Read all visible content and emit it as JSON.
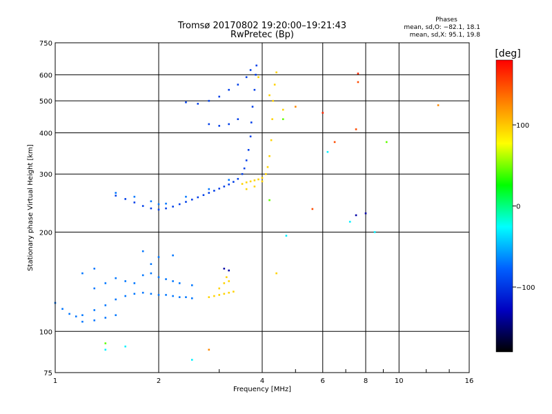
{
  "title": "Tromsø 20170802 19:20:00–19:21:43",
  "subtitle": "RwPretec (Bp)",
  "phase_box": {
    "heading": "Phases",
    "line_o": "mean, sd,O: −82.1, 18.1",
    "line_x": "mean, sd,X:  95.1, 19.8"
  },
  "colorbar": {
    "label": "[deg]",
    "min": -180,
    "max": 180,
    "tick_labels": [
      "100",
      "0",
      "−100"
    ],
    "tick_values": [
      100,
      0,
      -100
    ],
    "colors": [
      "#ff0000",
      "#ff8000",
      "#ffff00",
      "#00ff00",
      "#00ffff",
      "#0060ff",
      "#0000c0",
      "#000000"
    ]
  },
  "chart_data": {
    "type": "scatter",
    "title": "Tromsø 20170802 19:20:00–19:21:43",
    "subtitle": "RwPretec (Bp)",
    "xlabel": "Frequency [MHz]",
    "ylabel": "Stationary phase Virtual Height [km]",
    "xscale": "log2",
    "yscale": "log",
    "xlim": [
      1,
      16
    ],
    "ylim": [
      75,
      750
    ],
    "x_ticks": [
      1,
      2,
      4,
      6,
      8,
      10,
      16
    ],
    "x_tick_labels": [
      "1",
      "2",
      "4",
      "6",
      "8",
      "10",
      "16"
    ],
    "y_ticks": [
      75,
      100,
      200,
      300,
      400,
      500,
      600,
      750
    ],
    "y_tick_labels": [
      "75",
      "100",
      "200",
      "300",
      "400",
      "500",
      "600",
      "750"
    ],
    "grid": true,
    "color_scale": "phase [deg]",
    "series": [
      {
        "phase_deg": -95,
        "points": [
          [
            1.5,
            258
          ],
          [
            1.6,
            252
          ],
          [
            1.7,
            246
          ],
          [
            1.8,
            240
          ],
          [
            1.9,
            236
          ],
          [
            2.0,
            234
          ],
          [
            2.1,
            236
          ],
          [
            2.2,
            239
          ],
          [
            2.3,
            243
          ],
          [
            2.4,
            247
          ],
          [
            2.5,
            251
          ],
          [
            2.6,
            255
          ],
          [
            2.7,
            259
          ],
          [
            2.8,
            263
          ],
          [
            2.9,
            267
          ],
          [
            3.0,
            271
          ],
          [
            3.1,
            275
          ],
          [
            3.2,
            279
          ],
          [
            3.3,
            284
          ],
          [
            3.4,
            290
          ],
          [
            3.5,
            300
          ],
          [
            3.55,
            312
          ],
          [
            3.6,
            330
          ],
          [
            3.65,
            355
          ],
          [
            3.7,
            390
          ],
          [
            3.72,
            430
          ],
          [
            3.75,
            480
          ],
          [
            3.8,
            540
          ],
          [
            3.83,
            600
          ],
          [
            3.85,
            640
          ],
          [
            2.4,
            495
          ],
          [
            2.6,
            490
          ],
          [
            2.8,
            500
          ],
          [
            3.0,
            515
          ],
          [
            3.2,
            540
          ],
          [
            3.4,
            560
          ],
          [
            3.6,
            590
          ],
          [
            3.7,
            620
          ],
          [
            2.8,
            425
          ],
          [
            3.0,
            420
          ],
          [
            3.2,
            425
          ],
          [
            3.4,
            440
          ]
        ]
      },
      {
        "phase_deg": -70,
        "points": [
          [
            1.0,
            122
          ],
          [
            1.05,
            117
          ],
          [
            1.1,
            113
          ],
          [
            1.15,
            111
          ],
          [
            1.2,
            112
          ],
          [
            1.3,
            116
          ],
          [
            1.4,
            120
          ],
          [
            1.5,
            125
          ],
          [
            1.6,
            128
          ],
          [
            1.7,
            130
          ],
          [
            1.8,
            131
          ],
          [
            1.9,
            130
          ],
          [
            2.0,
            129
          ],
          [
            2.1,
            129
          ],
          [
            2.2,
            128
          ],
          [
            2.3,
            127
          ],
          [
            2.4,
            127
          ],
          [
            2.5,
            126
          ],
          [
            1.3,
            135
          ],
          [
            1.4,
            140
          ],
          [
            1.5,
            145
          ],
          [
            1.6,
            142
          ],
          [
            1.7,
            140
          ],
          [
            1.8,
            148
          ],
          [
            1.9,
            150
          ],
          [
            2.0,
            146
          ],
          [
            2.1,
            144
          ],
          [
            2.2,
            142
          ],
          [
            2.3,
            140
          ],
          [
            2.5,
            138
          ],
          [
            1.2,
            150
          ],
          [
            1.3,
            155
          ],
          [
            1.9,
            160
          ],
          [
            2.0,
            168
          ],
          [
            1.8,
            175
          ],
          [
            2.2,
            170
          ],
          [
            1.2,
            107
          ],
          [
            1.3,
            108
          ],
          [
            1.4,
            110
          ],
          [
            1.5,
            112
          ],
          [
            1.5,
            263
          ],
          [
            1.7,
            256
          ],
          [
            1.9,
            248
          ],
          [
            2.0,
            243
          ],
          [
            2.1,
            244
          ],
          [
            2.4,
            256
          ],
          [
            2.8,
            270
          ],
          [
            3.2,
            288
          ]
        ]
      },
      {
        "phase_deg": 95,
        "points": [
          [
            3.5,
            280
          ],
          [
            3.6,
            283
          ],
          [
            3.7,
            285
          ],
          [
            3.8,
            287
          ],
          [
            3.9,
            289
          ],
          [
            4.0,
            292
          ],
          [
            4.1,
            300
          ],
          [
            4.15,
            315
          ],
          [
            4.2,
            340
          ],
          [
            4.25,
            380
          ],
          [
            4.28,
            440
          ],
          [
            4.3,
            500
          ],
          [
            4.35,
            560
          ],
          [
            4.4,
            610
          ],
          [
            2.8,
            127
          ],
          [
            2.9,
            128
          ],
          [
            3.0,
            129
          ],
          [
            3.1,
            130
          ],
          [
            3.2,
            131
          ],
          [
            3.3,
            132
          ],
          [
            3.0,
            135
          ],
          [
            3.1,
            140
          ],
          [
            3.2,
            142
          ],
          [
            3.15,
            146
          ],
          [
            3.6,
            270
          ],
          [
            3.8,
            275
          ],
          [
            4.0,
            285
          ],
          [
            4.4,
            150
          ],
          [
            4.6,
            470
          ],
          [
            3.9,
            590
          ],
          [
            4.2,
            520
          ]
        ]
      },
      {
        "phase_deg": -135,
        "points": [
          [
            3.1,
            155
          ],
          [
            3.2,
            153
          ],
          [
            7.5,
            225
          ],
          [
            8.0,
            228
          ]
        ]
      },
      {
        "phase_deg": 45,
        "points": [
          [
            1.4,
            92
          ],
          [
            4.6,
            440
          ],
          [
            4.2,
            250
          ],
          [
            9.2,
            375
          ]
        ]
      },
      {
        "phase_deg": -30,
        "points": [
          [
            1.4,
            88
          ],
          [
            1.6,
            90
          ],
          [
            2.5,
            82
          ],
          [
            7.2,
            215
          ],
          [
            8.5,
            200
          ],
          [
            4.7,
            195
          ],
          [
            6.2,
            350
          ]
        ]
      },
      {
        "phase_deg": 150,
        "points": [
          [
            5.6,
            235
          ],
          [
            6.5,
            375
          ],
          [
            7.5,
            410
          ],
          [
            7.6,
            570
          ]
        ]
      },
      {
        "phase_deg": 165,
        "points": [
          [
            7.6,
            605
          ],
          [
            6.0,
            460
          ]
        ]
      },
      {
        "phase_deg": 125,
        "points": [
          [
            13.0,
            485
          ],
          [
            2.8,
            88
          ],
          [
            5.0,
            480
          ]
        ]
      }
    ]
  }
}
